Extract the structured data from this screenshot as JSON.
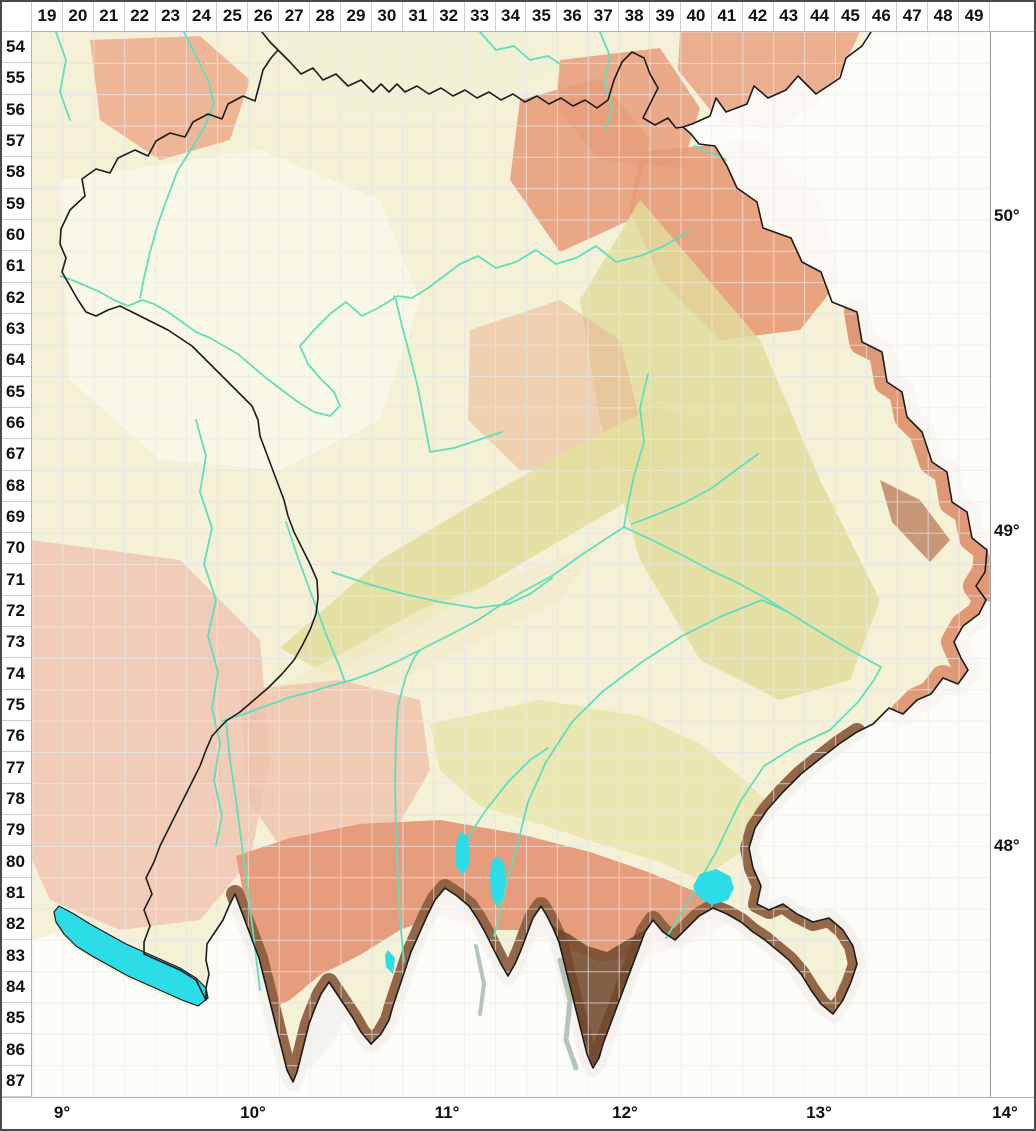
{
  "grid": {
    "column_labels": [
      "19",
      "20",
      "21",
      "22",
      "23",
      "24",
      "25",
      "26",
      "27",
      "28",
      "29",
      "30",
      "31",
      "32",
      "33",
      "34",
      "35",
      "36",
      "37",
      "38",
      "39",
      "40",
      "41",
      "42",
      "43",
      "44",
      "45",
      "46",
      "47",
      "48",
      "49"
    ],
    "row_labels": [
      "54",
      "55",
      "56",
      "57",
      "58",
      "59",
      "60",
      "61",
      "62",
      "63",
      "64",
      "65",
      "66",
      "67",
      "68",
      "69",
      "70",
      "71",
      "72",
      "73",
      "74",
      "75",
      "76",
      "77",
      "78",
      "79",
      "80",
      "81",
      "82",
      "83",
      "84",
      "85",
      "86",
      "87"
    ]
  },
  "axis": {
    "longitude_labels": [
      "9°",
      "10°",
      "11°",
      "12°",
      "13°",
      "14°"
    ],
    "latitude_labels": [
      "50°",
      "49°",
      "48°"
    ]
  },
  "colors": {
    "state_border": "#1c1c1c",
    "river": "#5fdfbc",
    "lake": "#2cdde8",
    "terrain_base": "#f5f1d6",
    "terrain_pale": "#faf7e8",
    "terrain_upland": "#e1dd9a",
    "terrain_hills": "#e89e7c",
    "terrain_foothills": "#e59878",
    "terrain_pink": "#f1c9b6",
    "terrain_alps": "#8e5f40",
    "terrain_alps_dark": "#6f472c",
    "blank_outside": "#fcfcfa",
    "grid_line_map": "#ffffff",
    "grid_line_blank": "#e2e2e2",
    "band_background": "#ffffff",
    "frame": "#4a4a4a",
    "label_text": "#111111"
  }
}
